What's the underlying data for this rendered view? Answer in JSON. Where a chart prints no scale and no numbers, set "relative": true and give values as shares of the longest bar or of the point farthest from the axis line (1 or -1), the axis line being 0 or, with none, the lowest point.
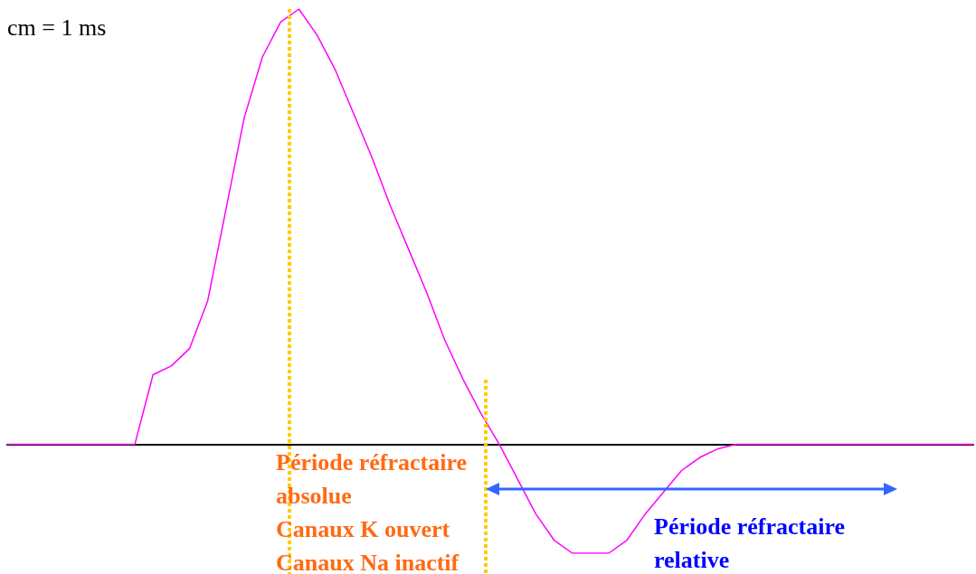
{
  "chart_data": {
    "type": "line",
    "relative": true,
    "categories": [
      null,
      null,
      null,
      null,
      null,
      null,
      null,
      null,
      null,
      null,
      null,
      null,
      null,
      null,
      null,
      null,
      null,
      null,
      null,
      null,
      null,
      null,
      null,
      null,
      null,
      null,
      null,
      null,
      null,
      null,
      null,
      null,
      null,
      null,
      null,
      null,
      null,
      null,
      null,
      null,
      null,
      null,
      null,
      null,
      null,
      null,
      null,
      null,
      null,
      null,
      null,
      null,
      null,
      null
    ],
    "series": [
      {
        "color": "#ff00ff",
        "values": [
          0,
          0,
          0,
          0,
          0,
          0,
          0,
          0,
          0.16,
          0.18,
          0.22,
          0.33,
          0.54,
          0.75,
          0.89,
          0.97,
          1,
          0.94,
          0.86,
          0.76,
          0.66,
          0.55,
          0.45,
          0.35,
          0.24,
          0.15,
          0.07,
          0,
          -0.08,
          -0.16,
          -0.22,
          -0.25,
          -0.25,
          -0.25,
          -0.22,
          -0.16,
          -0.11,
          -0.06,
          -0.03,
          -0.01,
          0,
          0,
          0,
          0,
          0,
          0,
          0,
          0,
          0,
          0,
          0,
          0,
          0,
          0
        ]
      }
    ],
    "marker": "none",
    "grid": false,
    "annotations": [
      "cm = 1 ms",
      "Période réfractaire absolue",
      "Canaux K ouvert",
      "Canaux Na inactif",
      "Période réfractaire relative"
    ]
  }
}
